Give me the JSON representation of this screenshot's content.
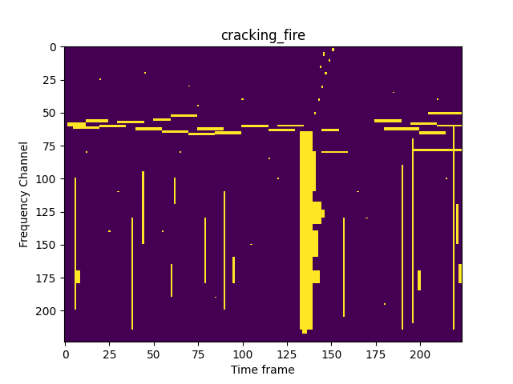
{
  "chart_data": {
    "type": "heatmap",
    "title": "cracking_fire",
    "x_label": "Time frame",
    "y_label": "Frequency Channel",
    "shape": [
      224,
      224
    ],
    "value_range": [
      0,
      1
    ],
    "xlim": [
      -0.5,
      223.5
    ],
    "ylim": [
      223.5,
      -0.5
    ],
    "xticks": [
      0,
      25,
      50,
      75,
      100,
      125,
      150,
      175,
      200
    ],
    "yticks": [
      0,
      25,
      50,
      75,
      100,
      125,
      150,
      175,
      200
    ],
    "cells": [
      [
        2,
        12,
        58,
        61
      ],
      [
        5,
        20,
        61,
        63
      ],
      [
        12,
        25,
        56,
        58
      ],
      [
        20,
        35,
        60,
        62
      ],
      [
        30,
        45,
        57,
        59
      ],
      [
        40,
        55,
        62,
        64
      ],
      [
        50,
        60,
        55,
        57
      ],
      [
        55,
        70,
        64,
        66
      ],
      [
        60,
        75,
        52,
        54
      ],
      [
        70,
        85,
        66,
        68
      ],
      [
        75,
        90,
        62,
        64
      ],
      [
        85,
        100,
        65,
        67
      ],
      [
        100,
        115,
        60,
        62
      ],
      [
        115,
        130,
        63,
        65
      ],
      [
        120,
        135,
        60,
        61
      ],
      [
        145,
        155,
        63,
        65
      ],
      [
        175,
        190,
        56,
        58
      ],
      [
        180,
        200,
        62,
        64
      ],
      [
        195,
        210,
        58,
        60
      ],
      [
        205,
        224,
        50,
        52
      ],
      [
        200,
        215,
        65,
        67
      ],
      [
        210,
        224,
        60,
        61
      ],
      [
        196,
        224,
        78,
        80
      ],
      [
        145,
        160,
        80,
        81
      ],
      [
        6,
        7,
        100,
        200
      ],
      [
        7,
        9,
        170,
        180
      ],
      [
        38,
        39,
        130,
        215
      ],
      [
        44,
        45,
        95,
        150
      ],
      [
        60,
        61,
        165,
        190
      ],
      [
        62,
        63,
        100,
        120
      ],
      [
        79,
        80,
        130,
        180
      ],
      [
        90,
        91,
        110,
        200
      ],
      [
        95,
        96,
        160,
        180
      ],
      [
        157,
        158,
        130,
        205
      ],
      [
        190,
        191,
        90,
        215
      ],
      [
        196,
        197,
        70,
        210
      ],
      [
        199,
        201,
        170,
        185
      ],
      [
        219,
        220,
        60,
        215
      ],
      [
        221,
        222,
        120,
        150
      ],
      [
        222,
        224,
        165,
        180
      ],
      [
        133,
        140,
        65,
        215
      ],
      [
        140,
        142,
        80,
        110
      ],
      [
        140,
        145,
        118,
        135
      ],
      [
        145,
        147,
        124,
        130
      ],
      [
        140,
        143,
        140,
        160
      ],
      [
        140,
        144,
        170,
        180
      ],
      [
        134,
        137,
        215,
        218
      ],
      [
        141,
        142,
        50,
        52
      ],
      [
        143,
        144,
        40,
        42
      ],
      [
        145,
        146,
        30,
        32
      ],
      [
        147,
        148,
        20,
        22
      ],
      [
        149,
        150,
        10,
        12
      ],
      [
        151,
        152,
        2,
        4
      ],
      [
        146,
        147,
        5,
        8
      ],
      [
        144,
        145,
        15,
        17
      ],
      [
        20,
        21,
        25,
        26
      ],
      [
        45,
        46,
        20,
        21
      ],
      [
        70,
        71,
        30,
        31
      ],
      [
        100,
        101,
        40,
        41
      ],
      [
        115,
        116,
        85,
        86
      ],
      [
        30,
        31,
        110,
        111
      ],
      [
        55,
        56,
        140,
        141
      ],
      [
        105,
        106,
        150,
        151
      ],
      [
        170,
        171,
        130,
        131
      ],
      [
        210,
        211,
        40,
        41
      ],
      [
        185,
        186,
        35,
        36
      ],
      [
        120,
        121,
        100,
        101
      ],
      [
        25,
        26,
        140,
        141
      ],
      [
        85,
        86,
        190,
        191
      ],
      [
        165,
        166,
        110,
        111
      ],
      [
        180,
        181,
        195,
        196
      ],
      [
        215,
        216,
        100,
        101
      ],
      [
        65,
        66,
        80,
        81
      ],
      [
        12,
        13,
        80,
        81
      ],
      [
        75,
        76,
        45,
        46
      ]
    ]
  }
}
